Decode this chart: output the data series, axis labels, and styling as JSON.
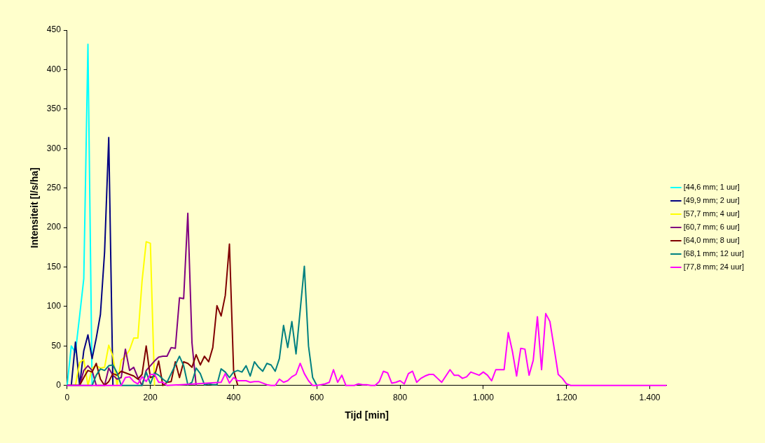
{
  "chart_data": {
    "type": "line",
    "xlabel": "Tijd [min]",
    "ylabel": "Intensiteit [l/s/ha]",
    "xlim": [
      0,
      1440
    ],
    "xticks": [
      0,
      200,
      400,
      600,
      800,
      {
        "value": 1000,
        "label": "1.000"
      },
      {
        "value": 1200,
        "label": "1.200"
      },
      {
        "value": 1400,
        "label": "1.400"
      }
    ],
    "ylim": [
      0,
      450
    ],
    "yticks": [
      0,
      50,
      100,
      150,
      200,
      250,
      300,
      350,
      400,
      450
    ],
    "grid": false,
    "legend": "right",
    "marker": "none",
    "line_style": "solid",
    "series": [
      {
        "name": "[44,6 mm; 1 uur]",
        "color": "#00ffff",
        "x": [
          0,
          10,
          20,
          30,
          40,
          50,
          60
        ],
        "values": [
          0,
          50,
          42,
          88,
          135,
          432,
          0
        ]
      },
      {
        "name": "[49,9 mm; 2 uur]",
        "color": "#000080",
        "x": [
          0,
          10,
          20,
          30,
          40,
          50,
          60,
          70,
          80,
          90,
          100,
          110
        ],
        "values": [
          0,
          0,
          55,
          0,
          44,
          64,
          34,
          60,
          90,
          169,
          314,
          0
        ]
      },
      {
        "name": "[57,7 mm; 4 uur]",
        "color": "#ffff00",
        "x": [
          0,
          10,
          20,
          30,
          40,
          50,
          60,
          70,
          80,
          90,
          100,
          110,
          120,
          130,
          140,
          150,
          160,
          170,
          180,
          190,
          200,
          210
        ],
        "values": [
          0,
          0,
          0,
          29,
          33,
          0,
          22,
          25,
          22,
          23,
          51,
          37,
          0,
          32,
          37,
          45,
          60,
          60,
          132,
          182,
          180,
          0
        ]
      },
      {
        "name": "[60,7 mm; 6 uur]",
        "color": "#800080",
        "x": [
          0,
          10,
          20,
          30,
          40,
          50,
          60,
          70,
          80,
          90,
          100,
          110,
          120,
          130,
          140,
          150,
          160,
          170,
          180,
          190,
          200,
          210,
          220,
          230,
          240,
          250,
          260,
          270,
          280,
          290,
          300,
          310
        ],
        "values": [
          0,
          0,
          0,
          0,
          19,
          25,
          19,
          0,
          0,
          0,
          22,
          13,
          8,
          10,
          46,
          19,
          23,
          10,
          0,
          19,
          25,
          31,
          36,
          37,
          37,
          48,
          47,
          111,
          110,
          218,
          54,
          0
        ]
      },
      {
        "name": "[64,0 mm; 8 uur]",
        "color": "#800000",
        "x": [
          0,
          10,
          20,
          30,
          40,
          50,
          60,
          70,
          80,
          90,
          100,
          110,
          120,
          130,
          140,
          150,
          160,
          170,
          180,
          190,
          200,
          210,
          220,
          230,
          240,
          250,
          260,
          270,
          280,
          290,
          300,
          310,
          320,
          330,
          340,
          350,
          360,
          370,
          380,
          390,
          400,
          410
        ],
        "values": [
          0,
          0,
          0,
          0,
          10,
          19,
          17,
          28,
          8,
          0,
          5,
          15,
          13,
          18,
          16,
          14,
          12,
          8,
          14,
          50,
          10,
          12,
          31,
          0,
          4,
          5,
          30,
          10,
          30,
          28,
          23,
          39,
          26,
          37,
          30,
          48,
          101,
          88,
          114,
          179,
          19,
          0
        ]
      },
      {
        "name": "[68,1 mm; 12 uur]",
        "color": "#008080",
        "x": [
          0,
          60,
          70,
          80,
          90,
          100,
          110,
          120,
          130,
          180,
          190,
          200,
          210,
          220,
          230,
          240,
          250,
          260,
          270,
          280,
          290,
          300,
          310,
          320,
          330,
          340,
          350,
          360,
          370,
          380,
          390,
          400,
          410,
          420,
          430,
          440,
          450,
          460,
          470,
          480,
          490,
          500,
          510,
          520,
          530,
          540,
          550,
          560,
          570,
          580,
          590,
          600
        ],
        "values": [
          0,
          0,
          13,
          21,
          19,
          25,
          26,
          16,
          0,
          0,
          17,
          2,
          16,
          13,
          8,
          4,
          15,
          26,
          37,
          25,
          1,
          4,
          22,
          15,
          1,
          2,
          1,
          1,
          21,
          17,
          10,
          17,
          19,
          17,
          25,
          12,
          30,
          23,
          18,
          28,
          26,
          18,
          34,
          76,
          48,
          81,
          40,
          95,
          151,
          50,
          10,
          0
        ]
      },
      {
        "name": "[77,8 mm; 24 uur]",
        "color": "#ff00ff",
        "x": [
          0,
          130,
          140,
          150,
          160,
          170,
          180,
          190,
          200,
          210,
          220,
          230,
          240,
          370,
          380,
          390,
          400,
          410,
          420,
          430,
          440,
          450,
          460,
          470,
          480,
          490,
          500,
          510,
          520,
          530,
          540,
          550,
          560,
          570,
          580,
          590,
          600,
          610,
          620,
          630,
          640,
          650,
          660,
          670,
          680,
          690,
          700,
          710,
          720,
          730,
          740,
          750,
          760,
          770,
          780,
          790,
          800,
          810,
          820,
          830,
          840,
          850,
          860,
          870,
          880,
          890,
          900,
          910,
          920,
          930,
          940,
          950,
          960,
          970,
          980,
          990,
          1000,
          1010,
          1020,
          1030,
          1040,
          1050,
          1060,
          1070,
          1080,
          1090,
          1100,
          1110,
          1120,
          1130,
          1140,
          1150,
          1160,
          1170,
          1180,
          1190,
          1200,
          1210,
          1440
        ],
        "values": [
          0,
          0,
          10,
          11,
          5,
          2,
          11,
          5,
          14,
          14,
          4,
          4,
          0,
          4,
          15,
          3,
          10,
          6,
          6,
          6,
          4,
          5,
          5,
          3,
          1,
          0,
          0,
          8,
          4,
          6,
          11,
          14,
          28,
          15,
          6,
          0,
          0,
          1,
          2,
          4,
          20,
          4,
          13,
          0,
          0,
          0,
          2,
          1,
          1,
          0,
          0,
          5,
          18,
          16,
          3,
          4,
          6,
          2,
          15,
          18,
          4,
          9,
          12,
          14,
          14,
          9,
          4,
          12,
          20,
          13,
          13,
          9,
          11,
          17,
          15,
          13,
          17,
          13,
          6,
          20,
          20,
          20,
          67,
          43,
          12,
          47,
          46,
          13,
          32,
          87,
          20,
          91,
          81,
          48,
          14,
          9,
          2,
          0,
          0
        ]
      }
    ]
  }
}
